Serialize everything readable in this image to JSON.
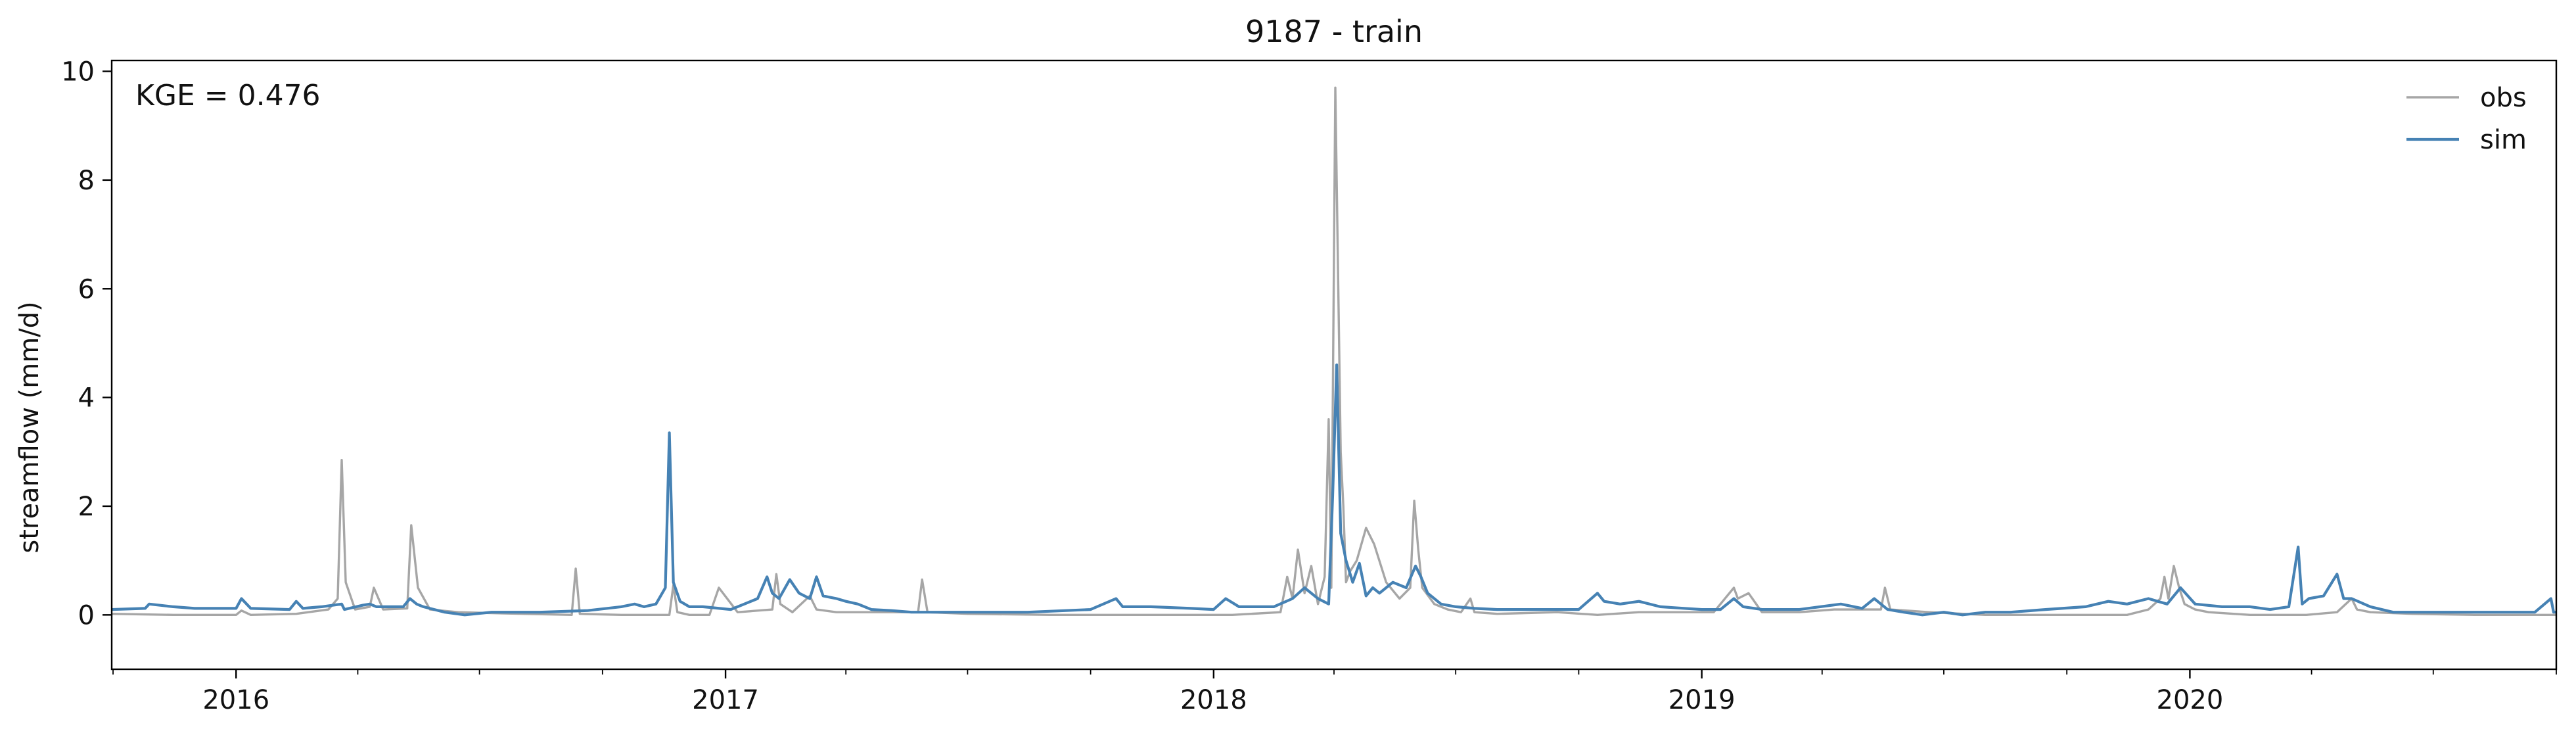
{
  "chart_data": {
    "type": "line",
    "title": "9187 - train",
    "xlabel": "",
    "ylabel": "streamflow (mm/d)",
    "annotation": "KGE = 0.476",
    "xlim": [
      "2015-09-30",
      "2020-10-01"
    ],
    "ylim": [
      -1,
      10.2
    ],
    "yticks": [
      0,
      2,
      4,
      6,
      8,
      10
    ],
    "xticks": [
      {
        "date": "2016-01-01",
        "label": "2016"
      },
      {
        "date": "2017-01-01",
        "label": "2017"
      },
      {
        "date": "2018-01-01",
        "label": "2018"
      },
      {
        "date": "2019-01-01",
        "label": "2019"
      },
      {
        "date": "2020-01-01",
        "label": "2020"
      }
    ],
    "grid": false,
    "legend": {
      "position": "top-right"
    },
    "series": [
      {
        "name": "obs",
        "color": "#a6a6a6",
        "x": [
          "2015-09-30",
          "2015-11-15",
          "2016-01-01",
          "2016-01-05",
          "2016-01-12",
          "2016-02-15",
          "2016-03-10",
          "2016-03-17",
          "2016-03-20",
          "2016-03-23",
          "2016-03-30",
          "2016-04-10",
          "2016-04-13",
          "2016-04-20",
          "2016-05-08",
          "2016-05-11",
          "2016-05-16",
          "2016-05-25",
          "2016-06-15",
          "2016-07-15",
          "2016-09-08",
          "2016-09-11",
          "2016-09-14",
          "2016-10-15",
          "2016-11-20",
          "2016-11-23",
          "2016-11-26",
          "2016-12-05",
          "2016-12-20",
          "2016-12-27",
          "2017-01-10",
          "2017-02-05",
          "2017-02-08",
          "2017-02-11",
          "2017-02-20",
          "2017-03-05",
          "2017-03-10",
          "2017-03-25",
          "2017-04-15",
          "2017-05-25",
          "2017-05-28",
          "2017-06-01",
          "2017-07-01",
          "2017-09-01",
          "2017-11-01",
          "2018-01-15",
          "2018-02-20",
          "2018-02-25",
          "2018-03-01",
          "2018-03-05",
          "2018-03-10",
          "2018-03-15",
          "2018-03-20",
          "2018-03-25",
          "2018-03-28",
          "2018-03-30",
          "2018-04-02",
          "2018-04-06",
          "2018-04-08",
          "2018-04-10",
          "2018-04-13",
          "2018-04-18",
          "2018-04-25",
          "2018-05-01",
          "2018-05-10",
          "2018-05-20",
          "2018-05-28",
          "2018-05-31",
          "2018-06-03",
          "2018-06-06",
          "2018-06-15",
          "2018-06-25",
          "2018-07-05",
          "2018-07-12",
          "2018-07-15",
          "2018-08-01",
          "2018-09-15",
          "2018-10-15",
          "2018-11-15",
          "2019-01-10",
          "2019-01-25",
          "2019-01-28",
          "2019-02-05",
          "2019-02-15",
          "2019-03-15",
          "2019-04-10",
          "2019-05-15",
          "2019-05-18",
          "2019-05-22",
          "2019-06-20",
          "2019-08-01",
          "2019-09-15",
          "2019-11-15",
          "2019-12-01",
          "2019-12-10",
          "2019-12-13",
          "2019-12-16",
          "2019-12-20",
          "2019-12-24",
          "2019-12-28",
          "2020-01-05",
          "2020-01-15",
          "2020-02-15",
          "2020-03-20",
          "2020-03-24",
          "2020-03-28",
          "2020-04-20",
          "2020-05-01",
          "2020-05-05",
          "2020-05-15",
          "2020-06-15",
          "2020-08-01",
          "2020-09-15",
          "2020-10-01"
        ],
        "y": [
          0.02,
          0.0,
          0.0,
          0.08,
          0.0,
          0.02,
          0.1,
          0.3,
          2.85,
          0.6,
          0.1,
          0.15,
          0.5,
          0.1,
          0.12,
          1.65,
          0.5,
          0.1,
          0.05,
          0.03,
          0.0,
          0.85,
          0.02,
          0.0,
          0.0,
          0.55,
          0.05,
          0.0,
          0.0,
          0.5,
          0.05,
          0.1,
          0.75,
          0.2,
          0.05,
          0.35,
          0.1,
          0.05,
          0.05,
          0.05,
          0.65,
          0.05,
          0.02,
          0.0,
          0.0,
          0.0,
          0.05,
          0.7,
          0.3,
          1.2,
          0.4,
          0.9,
          0.2,
          0.7,
          3.6,
          0.5,
          9.7,
          3.0,
          2.0,
          0.6,
          0.8,
          1.0,
          1.6,
          1.3,
          0.6,
          0.3,
          0.5,
          2.1,
          1.2,
          0.5,
          0.2,
          0.1,
          0.05,
          0.3,
          0.05,
          0.02,
          0.05,
          0.0,
          0.05,
          0.05,
          0.5,
          0.3,
          0.4,
          0.05,
          0.05,
          0.1,
          0.1,
          0.5,
          0.1,
          0.05,
          0.0,
          0.0,
          0.0,
          0.1,
          0.3,
          0.7,
          0.3,
          0.9,
          0.5,
          0.2,
          0.1,
          0.05,
          0.0,
          0.0,
          0.0,
          0.0,
          0.05,
          0.3,
          0.1,
          0.05,
          0.02,
          0.0,
          0.0,
          0.0
        ]
      },
      {
        "name": "sim",
        "color": "#4682b4",
        "x": [
          "2015-09-30",
          "2015-10-25",
          "2015-10-28",
          "2015-11-15",
          "2015-12-01",
          "2016-01-01",
          "2016-01-05",
          "2016-01-12",
          "2016-02-10",
          "2016-02-15",
          "2016-02-20",
          "2016-03-05",
          "2016-03-20",
          "2016-03-22",
          "2016-04-05",
          "2016-04-10",
          "2016-04-15",
          "2016-05-05",
          "2016-05-10",
          "2016-05-15",
          "2016-05-20",
          "2016-06-05",
          "2016-06-20",
          "2016-07-10",
          "2016-08-15",
          "2016-09-20",
          "2016-10-15",
          "2016-10-25",
          "2016-11-01",
          "2016-11-10",
          "2016-11-17",
          "2016-11-20",
          "2016-11-23",
          "2016-11-28",
          "2016-12-05",
          "2016-12-15",
          "2017-01-05",
          "2017-01-15",
          "2017-01-25",
          "2017-02-01",
          "2017-02-05",
          "2017-02-10",
          "2017-02-18",
          "2017-02-25",
          "2017-03-05",
          "2017-03-10",
          "2017-03-15",
          "2017-03-25",
          "2017-04-01",
          "2017-04-10",
          "2017-04-20",
          "2017-05-05",
          "2017-05-20",
          "2017-06-15",
          "2017-07-15",
          "2017-08-15",
          "2017-10-01",
          "2017-10-20",
          "2017-10-25",
          "2017-11-15",
          "2017-12-15",
          "2018-01-01",
          "2018-01-10",
          "2018-01-20",
          "2018-02-15",
          "2018-03-01",
          "2018-03-10",
          "2018-03-20",
          "2018-03-28",
          "2018-03-31",
          "2018-04-03",
          "2018-04-06",
          "2018-04-10",
          "2018-04-15",
          "2018-04-20",
          "2018-04-25",
          "2018-04-30",
          "2018-05-05",
          "2018-05-15",
          "2018-05-25",
          "2018-06-01",
          "2018-06-05",
          "2018-06-10",
          "2018-06-20",
          "2018-07-01",
          "2018-07-15",
          "2018-08-01",
          "2018-09-01",
          "2018-10-01",
          "2018-10-15",
          "2018-10-20",
          "2018-11-01",
          "2018-11-15",
          "2018-12-01",
          "2019-01-01",
          "2019-01-15",
          "2019-01-25",
          "2019-02-01",
          "2019-02-15",
          "2019-03-15",
          "2019-04-15",
          "2019-05-01",
          "2019-05-10",
          "2019-05-20",
          "2019-06-01",
          "2019-06-15",
          "2019-07-01",
          "2019-07-15",
          "2019-08-01",
          "2019-08-20",
          "2019-09-15",
          "2019-10-15",
          "2019-11-01",
          "2019-11-15",
          "2019-12-01",
          "2019-12-15",
          "2019-12-25",
          "2020-01-05",
          "2020-01-25",
          "2020-02-15",
          "2020-03-01",
          "2020-03-15",
          "2020-03-22",
          "2020-03-25",
          "2020-03-30",
          "2020-04-10",
          "2020-04-20",
          "2020-04-25",
          "2020-05-01",
          "2020-05-15",
          "2020-06-01",
          "2020-06-15",
          "2020-07-15",
          "2020-08-15",
          "2020-09-15",
          "2020-09-27",
          "2020-09-29",
          "2020-10-01"
        ],
        "y": [
          0.1,
          0.12,
          0.2,
          0.15,
          0.12,
          0.12,
          0.3,
          0.12,
          0.1,
          0.25,
          0.12,
          0.15,
          0.2,
          0.1,
          0.18,
          0.2,
          0.15,
          0.15,
          0.3,
          0.2,
          0.15,
          0.05,
          0.0,
          0.05,
          0.05,
          0.08,
          0.15,
          0.2,
          0.15,
          0.2,
          0.5,
          3.35,
          0.6,
          0.25,
          0.15,
          0.15,
          0.1,
          0.2,
          0.3,
          0.7,
          0.4,
          0.3,
          0.65,
          0.4,
          0.3,
          0.7,
          0.35,
          0.3,
          0.25,
          0.2,
          0.1,
          0.08,
          0.05,
          0.05,
          0.05,
          0.05,
          0.1,
          0.3,
          0.15,
          0.15,
          0.12,
          0.1,
          0.3,
          0.15,
          0.15,
          0.3,
          0.5,
          0.3,
          0.2,
          2.2,
          4.6,
          1.5,
          1.0,
          0.6,
          0.95,
          0.35,
          0.5,
          0.4,
          0.6,
          0.5,
          0.9,
          0.7,
          0.4,
          0.2,
          0.15,
          0.12,
          0.1,
          0.1,
          0.1,
          0.4,
          0.25,
          0.2,
          0.25,
          0.15,
          0.1,
          0.1,
          0.3,
          0.15,
          0.1,
          0.1,
          0.2,
          0.12,
          0.3,
          0.1,
          0.05,
          0.0,
          0.05,
          0.0,
          0.05,
          0.05,
          0.1,
          0.15,
          0.25,
          0.2,
          0.3,
          0.2,
          0.5,
          0.2,
          0.15,
          0.15,
          0.1,
          0.15,
          1.25,
          0.2,
          0.3,
          0.35,
          0.75,
          0.3,
          0.3,
          0.15,
          0.05,
          0.05,
          0.05,
          0.05,
          0.05,
          0.3,
          0.05,
          0.05
        ]
      }
    ]
  }
}
